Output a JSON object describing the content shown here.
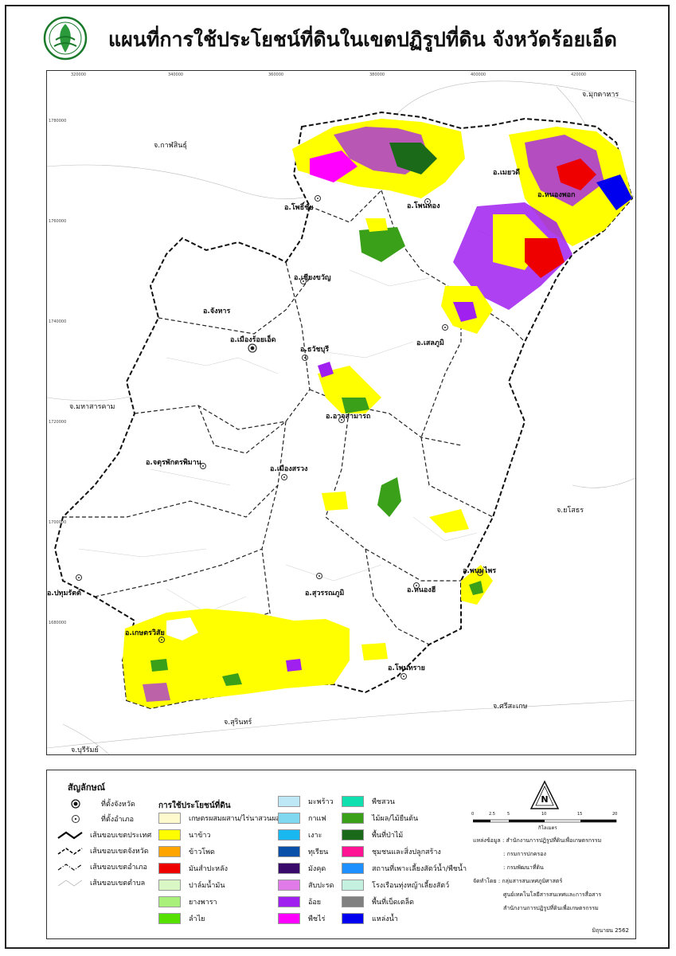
{
  "header": {
    "title": "แผนที่การใช้ประโยชน์ที่ดินในเขตปฏิรูปที่ดิน จังหวัดร้อยเอ็ด",
    "logo_icon": "alro-seal-icon"
  },
  "grid_ticks": {
    "x": [
      "320000",
      "340000",
      "360000",
      "380000",
      "400000",
      "420000"
    ],
    "y": [
      "1780000",
      "1760000",
      "1740000",
      "1720000",
      "1700000",
      "1680000"
    ]
  },
  "provinces": {
    "mukdahan": "จ.มุกดาหาร",
    "kalasin": "จ.กาฬสินธุ์",
    "maha_sarakham": "จ.มหาสารคาม",
    "yasothon": "จ.ยโสธร",
    "sisaket": "จ.ศรีสะเกษ",
    "surin": "จ.สุรินทร์",
    "buriram": "จ.บุรีรัมย์"
  },
  "districts": {
    "mueang": "อ.เมืองร้อยเอ็ด",
    "phon_thong": "อ.โพนทอง",
    "nong_phok": "อ.หนองพอก",
    "moei_wadi": "อ.เมยวดี",
    "pho_chai": "อ.โพธิ์ชัย",
    "chiang_khwan": "อ.เชียงขวัญ",
    "selaphum": "อ.เสลภูมิ",
    "chaturaphak": "อ.จตุรพักตรพิมาน",
    "mueang_suang": "อ.เมืองสรวง",
    "at_samat": "อ.อาจสามารถ",
    "thawat_buri": "อ.ธวัชบุรี",
    "phanom_phrai": "อ.พนมไพร",
    "nong_hi": "อ.หนองฮี",
    "suwannaphum": "อ.สุวรรณภูมิ",
    "kaset_wisai": "อ.เกษตรวิสัย",
    "phon_sai": "อ.โพนทราย",
    "pathum_rat": "อ.ปทุมรัตต์",
    "changhan": "อ.จังหาร"
  },
  "legend": {
    "title": "สัญลักษณ์",
    "symbols": [
      {
        "label": "ที่ตั้งจังหวัด",
        "icon": "province-seat-icon"
      },
      {
        "label": "ที่ตั้งอำเภอ",
        "icon": "district-seat-icon"
      },
      {
        "label": "เส้นขอบเขตประเทศ",
        "icon": "country-boundary-icon"
      },
      {
        "label": "เส้นขอบเขตจังหวัด",
        "icon": "province-boundary-icon"
      },
      {
        "label": "เส้นขอบเขตอำเภอ",
        "icon": "district-boundary-icon"
      },
      {
        "label": "เส้นขอบเขตตำบล",
        "icon": "subdistrict-boundary-icon"
      }
    ],
    "landuse_title": "การใช้ประโยชน์ที่ดิน",
    "col1": [
      {
        "label": "เกษตรผสมผสาน/ไร่นาสวนผสม",
        "color": "#fffacd"
      },
      {
        "label": "นาข้าว",
        "color": "#ffff00"
      },
      {
        "label": "ข้าวโพด",
        "color": "#ffa500"
      },
      {
        "label": "มันสำปะหลัง",
        "color": "#ee0000"
      },
      {
        "label": "ปาล์มน้ำมัน",
        "color": "#d9f7c4"
      },
      {
        "label": "ยางพารา",
        "color": "#a8f07a"
      },
      {
        "label": "ลำไย",
        "color": "#55e000"
      }
    ],
    "col2": [
      {
        "label": "มะพร้าว",
        "color": "#bfe8f7"
      },
      {
        "label": "กาแฟ",
        "color": "#7fd8f0"
      },
      {
        "label": "เงาะ",
        "color": "#1ab8f0"
      },
      {
        "label": "ทุเรียน",
        "color": "#0a4fa8"
      },
      {
        "label": "มังคุด",
        "color": "#3a0a6a"
      },
      {
        "label": "สับปะรด",
        "color": "#e07ae8"
      },
      {
        "label": "อ้อย",
        "color": "#a020f0"
      },
      {
        "label": "พืชไร่",
        "color": "#ff00ff"
      }
    ],
    "col3": [
      {
        "label": "พืชสวน",
        "color": "#10e0b0"
      },
      {
        "label": "ไม้ผล/ไม้ยืนต้น",
        "color": "#3aa01a"
      },
      {
        "label": "พื้นที่ป่าไม้",
        "color": "#1a6a1a"
      },
      {
        "label": "ชุมชนและสิ่งปลูกสร้าง",
        "color": "#ff1493"
      },
      {
        "label": "สถานที่เพาะเลี้ยงสัตว์น้ำ/พืชน้ำ",
        "color": "#1e90ff"
      },
      {
        "label": "โรงเรือนทุ่งหญ้าเลี้ยงสัตว์",
        "color": "#c4f0e0"
      },
      {
        "label": "พื้นที่เบ็ดเตล็ด",
        "color": "#808080"
      },
      {
        "label": "แหล่งน้ำ",
        "color": "#0000ee"
      }
    ],
    "north_label": "N",
    "scale_label": "กิโลเมตร",
    "scale_ticks": [
      "0",
      "2.5",
      "5",
      "10",
      "15",
      "20"
    ],
    "credits": {
      "source_label": "แหล่งข้อมูล",
      "source_lines": [
        ": สำนักงานการปฏิรูปที่ดินเพื่อเกษตรกรรม",
        ": กรมการปกครอง",
        ": กรมพัฒนาที่ดิน"
      ],
      "producer_label": "จัดทำโดย",
      "producer_lines": [
        ": กลุ่มสารสนเทศภูมิศาสตร์",
        "ศูนย์เทคโนโลยีสารสนเทศและการสื่อสาร",
        "สำนักงานการปฏิรูปที่ดินเพื่อเกษตรกรรม"
      ]
    },
    "date": "มิถุนายน 2562"
  }
}
